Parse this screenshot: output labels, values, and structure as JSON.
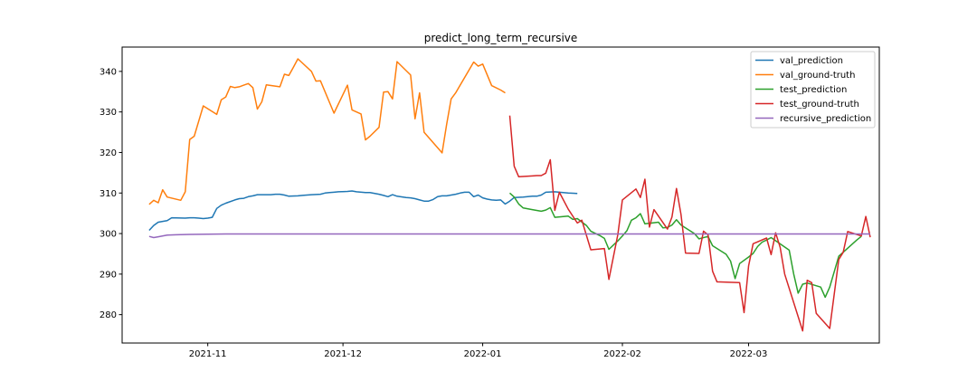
{
  "chart_data": {
    "type": "line",
    "title": "predict_long_term_recursive",
    "xlabel": "",
    "ylabel": "",
    "x_ticks": [
      "2021-11",
      "2021-12",
      "2022-01",
      "2022-02",
      "2022-03"
    ],
    "y_ticks": [
      280,
      290,
      300,
      310,
      320,
      330,
      340
    ],
    "xlim": [
      "2021-10-13",
      "2022-03-30"
    ],
    "ylim": [
      273,
      346
    ],
    "grid": false,
    "legend_position": "top-right",
    "series": [
      {
        "name": "val_prediction",
        "color": "#1f77b4",
        "points": [
          [
            "2021-10-19",
            300.8
          ],
          [
            "2021-10-20",
            302.0
          ],
          [
            "2021-10-21",
            302.8
          ],
          [
            "2021-10-22",
            303.0
          ],
          [
            "2021-10-23",
            303.2
          ],
          [
            "2021-10-24",
            303.9
          ],
          [
            "2021-10-27",
            303.8
          ],
          [
            "2021-10-28",
            303.9
          ],
          [
            "2021-10-29",
            303.9
          ],
          [
            "2021-10-30",
            303.8
          ],
          [
            "2021-10-31",
            303.7
          ],
          [
            "2021-11-01",
            303.8
          ],
          [
            "2021-11-02",
            304.0
          ],
          [
            "2021-11-03",
            306.2
          ],
          [
            "2021-11-04",
            307.0
          ],
          [
            "2021-11-05",
            307.5
          ],
          [
            "2021-11-07",
            308.3
          ],
          [
            "2021-11-08",
            308.6
          ],
          [
            "2021-11-09",
            308.7
          ],
          [
            "2021-11-10",
            309.1
          ],
          [
            "2021-11-11",
            309.3
          ],
          [
            "2021-11-12",
            309.6
          ],
          [
            "2021-11-14",
            309.6
          ],
          [
            "2021-11-15",
            309.6
          ],
          [
            "2021-11-16",
            309.7
          ],
          [
            "2021-11-17",
            309.7
          ],
          [
            "2021-11-18",
            309.5
          ],
          [
            "2021-11-19",
            309.2
          ],
          [
            "2021-11-21",
            309.3
          ],
          [
            "2021-11-22",
            309.4
          ],
          [
            "2021-11-23",
            309.5
          ],
          [
            "2021-11-24",
            309.6
          ],
          [
            "2021-11-26",
            309.7
          ],
          [
            "2021-11-27",
            310.0
          ],
          [
            "2021-11-28",
            310.1
          ],
          [
            "2021-11-29",
            310.2
          ],
          [
            "2021-11-30",
            310.3
          ],
          [
            "2021-12-02",
            310.4
          ],
          [
            "2021-12-03",
            310.5
          ],
          [
            "2021-12-04",
            310.3
          ],
          [
            "2021-12-06",
            310.1
          ],
          [
            "2021-12-07",
            310.1
          ],
          [
            "2021-12-09",
            309.7
          ],
          [
            "2021-12-10",
            309.4
          ],
          [
            "2021-12-11",
            309.1
          ],
          [
            "2021-12-12",
            309.6
          ],
          [
            "2021-12-13",
            309.2
          ],
          [
            "2021-12-15",
            308.9
          ],
          [
            "2021-12-16",
            308.8
          ],
          [
            "2021-12-17",
            308.6
          ],
          [
            "2021-12-18",
            308.3
          ],
          [
            "2021-12-19",
            308.0
          ],
          [
            "2021-12-20",
            308.0
          ],
          [
            "2021-12-21",
            308.4
          ],
          [
            "2021-12-22",
            309.1
          ],
          [
            "2021-12-23",
            309.3
          ],
          [
            "2021-12-24",
            309.3
          ],
          [
            "2021-12-26",
            309.7
          ],
          [
            "2021-12-27",
            310.0
          ],
          [
            "2021-12-28",
            310.2
          ],
          [
            "2021-12-29",
            310.2
          ],
          [
            "2021-12-30",
            309.1
          ],
          [
            "2021-12-31",
            309.5
          ],
          [
            "2022-01-01",
            308.8
          ],
          [
            "2022-01-02",
            308.5
          ],
          [
            "2022-01-03",
            308.3
          ],
          [
            "2022-01-04",
            308.2
          ],
          [
            "2022-01-05",
            308.3
          ],
          [
            "2022-01-06",
            307.3
          ],
          [
            "2022-01-07",
            308.0
          ],
          [
            "2022-01-08",
            308.9
          ],
          [
            "2022-01-10",
            309.0
          ],
          [
            "2022-01-12",
            309.2
          ],
          [
            "2022-01-13",
            309.2
          ],
          [
            "2022-01-14",
            309.5
          ],
          [
            "2022-01-15",
            310.2
          ],
          [
            "2022-01-17",
            310.3
          ],
          [
            "2022-01-18",
            310.2
          ],
          [
            "2022-01-20",
            310.0
          ],
          [
            "2022-01-22",
            309.9
          ]
        ]
      },
      {
        "name": "val_ground-truth",
        "color": "#ff7f0e",
        "points": [
          [
            "2021-10-19",
            307.2
          ],
          [
            "2021-10-20",
            308.2
          ],
          [
            "2021-10-21",
            307.6
          ],
          [
            "2021-10-22",
            310.8
          ],
          [
            "2021-10-23",
            309.0
          ],
          [
            "2021-10-26",
            308.2
          ],
          [
            "2021-10-27",
            310.3
          ],
          [
            "2021-10-28",
            323.2
          ],
          [
            "2021-10-29",
            324.0
          ],
          [
            "2021-10-31",
            331.5
          ],
          [
            "2021-11-03",
            329.4
          ],
          [
            "2021-11-04",
            333.0
          ],
          [
            "2021-11-05",
            333.7
          ],
          [
            "2021-11-06",
            336.3
          ],
          [
            "2021-11-07",
            336.0
          ],
          [
            "2021-11-08",
            336.2
          ],
          [
            "2021-11-09",
            336.6
          ],
          [
            "2021-11-10",
            337.0
          ],
          [
            "2021-11-11",
            336.0
          ],
          [
            "2021-11-12",
            330.7
          ],
          [
            "2021-11-13",
            332.5
          ],
          [
            "2021-11-14",
            336.7
          ],
          [
            "2021-11-17",
            336.2
          ],
          [
            "2021-11-18",
            339.3
          ],
          [
            "2021-11-19",
            339.0
          ],
          [
            "2021-11-20",
            341.0
          ],
          [
            "2021-11-21",
            343.1
          ],
          [
            "2021-11-24",
            340.0
          ],
          [
            "2021-11-25",
            337.6
          ],
          [
            "2021-11-26",
            337.7
          ],
          [
            "2021-11-29",
            329.7
          ],
          [
            "2021-12-02",
            336.6
          ],
          [
            "2021-12-03",
            330.5
          ],
          [
            "2021-12-05",
            329.5
          ],
          [
            "2021-12-06",
            323.1
          ],
          [
            "2021-12-07",
            324.0
          ],
          [
            "2021-12-09",
            326.2
          ],
          [
            "2021-12-10",
            334.9
          ],
          [
            "2021-12-11",
            335.0
          ],
          [
            "2021-12-12",
            333.2
          ],
          [
            "2021-12-13",
            342.4
          ],
          [
            "2021-12-16",
            339.1
          ],
          [
            "2021-12-17",
            328.3
          ],
          [
            "2021-12-18",
            334.7
          ],
          [
            "2021-12-19",
            325.0
          ],
          [
            "2021-12-23",
            319.9
          ],
          [
            "2021-12-24",
            326.9
          ],
          [
            "2021-12-25",
            333.2
          ],
          [
            "2021-12-26",
            334.7
          ],
          [
            "2021-12-30",
            342.3
          ],
          [
            "2021-12-31",
            341.3
          ],
          [
            "2022-01-01",
            341.8
          ],
          [
            "2022-01-03",
            336.5
          ],
          [
            "2022-01-05",
            335.4
          ],
          [
            "2022-01-06",
            334.7
          ]
        ]
      },
      {
        "name": "test_prediction",
        "color": "#2ca02c",
        "points": [
          [
            "2022-01-07",
            310.0
          ],
          [
            "2022-01-08",
            309.0
          ],
          [
            "2022-01-09",
            307.3
          ],
          [
            "2022-01-10",
            306.3
          ],
          [
            "2022-01-12",
            305.9
          ],
          [
            "2022-01-14",
            305.5
          ],
          [
            "2022-01-15",
            305.8
          ],
          [
            "2022-01-16",
            306.4
          ],
          [
            "2022-01-17",
            304.0
          ],
          [
            "2022-01-20",
            304.3
          ],
          [
            "2022-01-21",
            303.5
          ],
          [
            "2022-01-22",
            303.7
          ],
          [
            "2022-01-24",
            302.0
          ],
          [
            "2022-01-25",
            300.6
          ],
          [
            "2022-01-27",
            299.5
          ],
          [
            "2022-01-28",
            298.8
          ],
          [
            "2022-01-29",
            296.1
          ],
          [
            "2022-01-31",
            298.2
          ],
          [
            "2022-02-01",
            299.4
          ],
          [
            "2022-02-02",
            300.7
          ],
          [
            "2022-02-03",
            303.3
          ],
          [
            "2022-02-04",
            303.9
          ],
          [
            "2022-02-05",
            304.9
          ],
          [
            "2022-02-06",
            302.4
          ],
          [
            "2022-02-09",
            302.8
          ],
          [
            "2022-02-10",
            301.4
          ],
          [
            "2022-02-11",
            301.5
          ],
          [
            "2022-02-12",
            302.1
          ],
          [
            "2022-02-13",
            303.4
          ],
          [
            "2022-02-14",
            302.1
          ],
          [
            "2022-02-17",
            300.0
          ],
          [
            "2022-02-18",
            298.7
          ],
          [
            "2022-02-20",
            299.3
          ],
          [
            "2022-02-21",
            297.0
          ],
          [
            "2022-02-24",
            294.9
          ],
          [
            "2022-02-25",
            293.2
          ],
          [
            "2022-02-26",
            288.9
          ],
          [
            "2022-02-27",
            292.6
          ],
          [
            "2022-03-01",
            294.2
          ],
          [
            "2022-03-02",
            295.1
          ],
          [
            "2022-03-03",
            296.8
          ],
          [
            "2022-03-04",
            297.9
          ],
          [
            "2022-03-05",
            298.4
          ],
          [
            "2022-03-06",
            299.0
          ],
          [
            "2022-03-10",
            295.9
          ],
          [
            "2022-03-11",
            290.1
          ],
          [
            "2022-03-12",
            285.3
          ],
          [
            "2022-03-13",
            287.5
          ],
          [
            "2022-03-14",
            287.8
          ],
          [
            "2022-03-17",
            286.8
          ],
          [
            "2022-03-18",
            284.3
          ],
          [
            "2022-03-19",
            286.8
          ],
          [
            "2022-03-21",
            294.4
          ],
          [
            "2022-03-23",
            296.4
          ],
          [
            "2022-03-25",
            298.4
          ],
          [
            "2022-03-26",
            299.3
          ]
        ]
      },
      {
        "name": "test_ground-truth",
        "color": "#d62728",
        "points": [
          [
            "2022-01-07",
            329.1
          ],
          [
            "2022-01-08",
            316.6
          ],
          [
            "2022-01-09",
            314.0
          ],
          [
            "2022-01-12",
            314.2
          ],
          [
            "2022-01-13",
            314.3
          ],
          [
            "2022-01-14",
            314.3
          ],
          [
            "2022-01-15",
            314.9
          ],
          [
            "2022-01-16",
            318.2
          ],
          [
            "2022-01-17",
            305.7
          ],
          [
            "2022-01-18",
            310.2
          ],
          [
            "2022-01-20",
            306.0
          ],
          [
            "2022-01-22",
            302.6
          ],
          [
            "2022-01-23",
            303.3
          ],
          [
            "2022-01-25",
            296.0
          ],
          [
            "2022-01-28",
            296.3
          ],
          [
            "2022-01-29",
            288.7
          ],
          [
            "2022-01-31",
            299.8
          ],
          [
            "2022-02-01",
            308.3
          ],
          [
            "2022-02-04",
            311.0
          ],
          [
            "2022-02-05",
            308.9
          ],
          [
            "2022-02-06",
            313.4
          ],
          [
            "2022-02-07",
            301.6
          ],
          [
            "2022-02-08",
            305.9
          ],
          [
            "2022-02-11",
            301.1
          ],
          [
            "2022-02-12",
            304.1
          ],
          [
            "2022-02-13",
            311.1
          ],
          [
            "2022-02-14",
            304.7
          ],
          [
            "2022-02-15",
            295.2
          ],
          [
            "2022-02-18",
            295.1
          ],
          [
            "2022-02-19",
            300.6
          ],
          [
            "2022-02-20",
            299.7
          ],
          [
            "2022-02-21",
            290.7
          ],
          [
            "2022-02-22",
            288.1
          ],
          [
            "2022-02-27",
            287.9
          ],
          [
            "2022-02-28",
            280.5
          ],
          [
            "2022-03-01",
            292.0
          ],
          [
            "2022-03-02",
            297.5
          ],
          [
            "2022-03-05",
            298.9
          ],
          [
            "2022-03-06",
            294.8
          ],
          [
            "2022-03-07",
            300.2
          ],
          [
            "2022-03-08",
            296.6
          ],
          [
            "2022-03-09",
            290.0
          ],
          [
            "2022-03-13",
            276.0
          ],
          [
            "2022-03-14",
            288.5
          ],
          [
            "2022-03-15",
            287.9
          ],
          [
            "2022-03-16",
            280.3
          ],
          [
            "2022-03-19",
            276.6
          ],
          [
            "2022-03-21",
            293.6
          ],
          [
            "2022-03-22",
            295.4
          ],
          [
            "2022-03-23",
            300.5
          ],
          [
            "2022-03-26",
            299.4
          ],
          [
            "2022-03-27",
            304.2
          ],
          [
            "2022-03-28",
            299.1
          ]
        ]
      },
      {
        "name": "recursive_prediction",
        "color": "#9467bd",
        "points": [
          [
            "2021-10-19",
            299.3
          ],
          [
            "2021-10-20",
            299.0
          ],
          [
            "2021-10-21",
            299.2
          ],
          [
            "2021-10-23",
            299.6
          ],
          [
            "2021-10-25",
            299.7
          ],
          [
            "2021-10-28",
            299.8
          ],
          [
            "2021-11-01",
            299.85
          ],
          [
            "2021-11-05",
            299.9
          ],
          [
            "2021-12-01",
            299.9
          ],
          [
            "2022-01-01",
            299.9
          ],
          [
            "2022-02-01",
            299.9
          ],
          [
            "2022-03-01",
            299.9
          ],
          [
            "2022-03-28",
            299.9
          ]
        ]
      }
    ]
  }
}
